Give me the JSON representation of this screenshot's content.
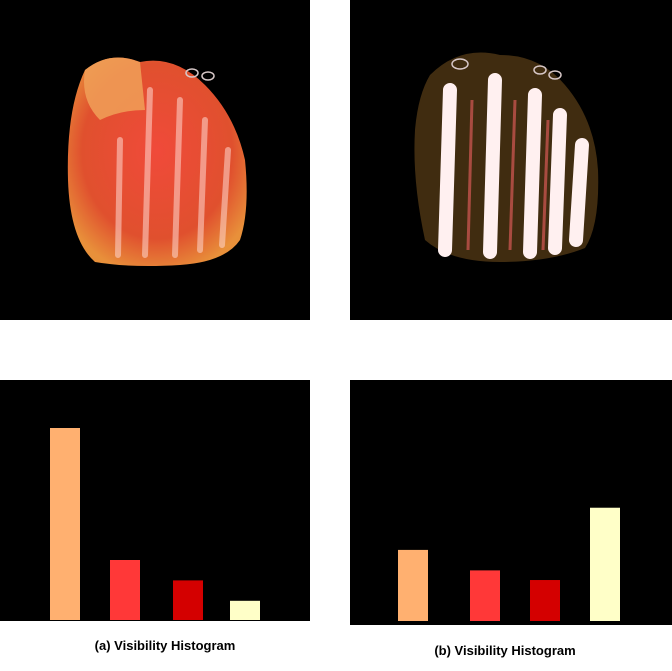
{
  "captions": {
    "a": "(a) Visibility Histogram",
    "b": "(b) Visibility Histogram"
  },
  "images": {
    "a": "foot-volume-render-red",
    "b": "foot-volume-render-white-bones"
  },
  "chart_data": [
    {
      "type": "bar",
      "title": "(a) Visibility Histogram",
      "categories": [
        "",
        "",
        "",
        ""
      ],
      "values": [
        0.8,
        0.25,
        0.165,
        0.08
      ],
      "colors": [
        "#ffb070",
        "#ff3838",
        "#d40000",
        "#ffffc8"
      ],
      "ylim": [
        0,
        1
      ],
      "grid": false,
      "legend": "none"
    },
    {
      "type": "bar",
      "title": "(b) Visibility Histogram",
      "categories": [
        "",
        "",
        "",
        ""
      ],
      "values": [
        0.295,
        0.21,
        0.17,
        0.47
      ],
      "colors": [
        "#ffb070",
        "#ff3838",
        "#d40000",
        "#ffffc8"
      ],
      "ylim": [
        0,
        1
      ],
      "grid": false,
      "legend": "none"
    }
  ]
}
